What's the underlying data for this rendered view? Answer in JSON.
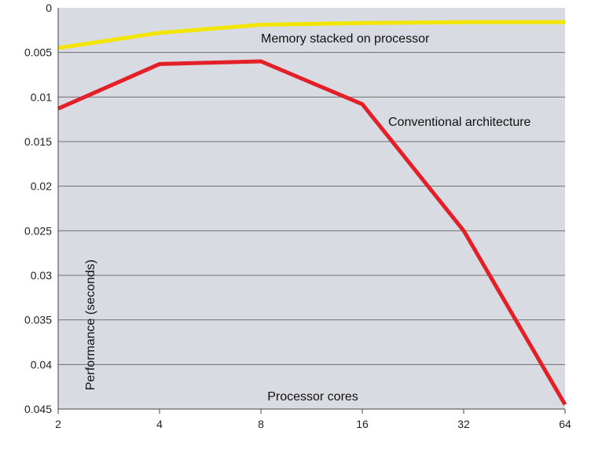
{
  "chart_data": {
    "type": "line",
    "x": [
      2,
      4,
      8,
      16,
      32,
      64
    ],
    "x_tick_labels": [
      "2",
      "4",
      "8",
      "16",
      "32",
      "64"
    ],
    "x_scale": "log2",
    "xlabel": "Processor cores",
    "ylabel": "Performance (seconds)",
    "y_tick_labels": [
      "0",
      "0.005",
      "0.01",
      "0.015",
      "0.02",
      "0.025",
      "0.03",
      "0.035",
      "0.04",
      "0.045"
    ],
    "ylim": [
      0,
      0.045
    ],
    "y_inverted": true,
    "grid": true,
    "series": [
      {
        "name": "Memory stacked on processor",
        "color": "#f2e600",
        "values": [
          0.0045,
          0.0028,
          0.0019,
          0.0017,
          0.0016,
          0.0016
        ]
      },
      {
        "name": "Conventional architecture",
        "color": "#e32027",
        "values": [
          0.0113,
          0.0063,
          0.006,
          0.0108,
          0.025,
          0.0445
        ]
      }
    ]
  },
  "style": {
    "plot_background": "#d9dbe2",
    "gridline_color": "#6f6f6f",
    "axis_color": "#444444"
  }
}
